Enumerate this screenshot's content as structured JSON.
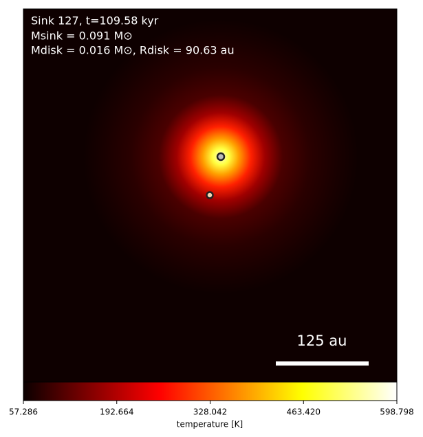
{
  "chart_data": {
    "type": "image",
    "annotations": [
      "Sink 127, t=109.58 kyr",
      "Msink = 0.091 M⊙",
      "Mdisk = 0.016 M⊙, Rdisk = 90.63 au"
    ],
    "scale_bar_label": "125 au",
    "colormap": "hot",
    "colorbar": {
      "label": "temperature [K]",
      "lim": [
        57.286,
        598.798
      ],
      "ticks": [
        57.286,
        192.664,
        328.042,
        {
          "value": 463.42,
          "label": "463.420"
        },
        598.798
      ]
    }
  }
}
